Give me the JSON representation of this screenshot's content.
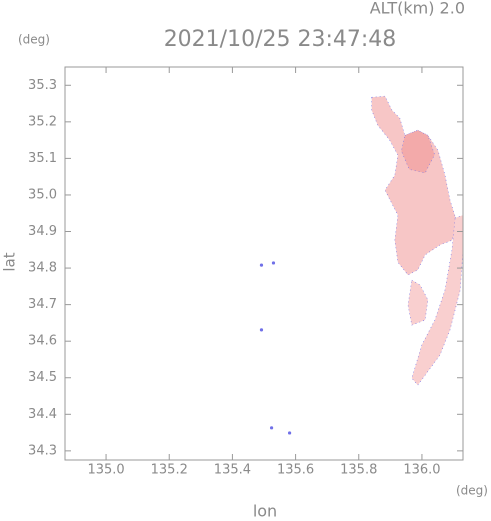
{
  "chart_data": {
    "type": "map",
    "altitude_label": "ALT(km) 2.0",
    "y_unit": "(deg)",
    "title": "2021/10/25 23:47:48",
    "ylabel": "lat",
    "xlabel": "lon",
    "x_unit": "(deg)",
    "xlim": [
      134.87,
      136.13
    ],
    "ylim": [
      34.275,
      35.35
    ],
    "xticks": [
      {
        "value": 135.0,
        "label": "135.0"
      },
      135.2,
      135.4,
      135.6,
      135.8,
      {
        "value": 136.0,
        "label": "136.0"
      }
    ],
    "yticks": [
      34.3,
      34.4,
      34.5,
      34.6,
      34.7,
      34.8,
      34.9,
      {
        "value": 35.0,
        "label": "35.0"
      },
      35.1,
      35.2,
      35.3
    ],
    "outline_color": "#7070e8",
    "echoes": [
      {
        "color": "#f7c6c6",
        "lon": [
          135.841,
          135.883,
          135.905,
          135.93,
          135.946,
          135.987,
          136.019,
          136.051,
          136.073,
          136.089,
          136.114,
          136.095,
          136.057,
          136.01,
          135.987,
          135.956,
          135.924,
          135.914,
          135.924,
          135.883,
          135.914,
          135.924,
          135.898,
          135.86,
          135.841
        ],
        "lat": [
          35.267,
          35.27,
          35.232,
          35.21,
          35.163,
          35.177,
          35.163,
          35.122,
          35.054,
          34.986,
          34.917,
          34.876,
          34.863,
          34.836,
          34.795,
          34.781,
          34.816,
          34.876,
          34.945,
          35.013,
          35.054,
          35.109,
          35.15,
          35.191,
          35.232
        ]
      },
      {
        "color": "#f9cfcf",
        "lon": [
          136.105,
          136.13,
          136.13,
          136.121,
          136.089,
          136.057,
          135.987,
          135.968,
          136.0,
          136.041,
          136.073,
          136.095
        ],
        "lat": [
          34.937,
          34.945,
          34.849,
          34.74,
          34.631,
          34.562,
          34.48,
          34.499,
          34.59,
          34.658,
          34.74,
          34.849
        ]
      },
      {
        "color": "#f9cfcf",
        "lon": [
          135.968,
          135.994,
          136.019,
          136.01,
          135.968,
          135.956
        ],
        "lat": [
          34.767,
          34.754,
          34.713,
          34.658,
          34.644,
          34.699
        ]
      },
      {
        "color": "#f3aaaa",
        "lon": [
          135.946,
          135.987,
          136.019,
          136.04,
          136.01,
          135.96,
          135.935
        ],
        "lat": [
          35.163,
          35.177,
          35.163,
          35.11,
          35.06,
          35.07,
          35.12
        ]
      }
    ],
    "points": {
      "color": "#7070e8",
      "lon": [
        135.492,
        135.53,
        135.492,
        135.524,
        135.581
      ],
      "lat": [
        34.808,
        34.814,
        34.631,
        34.363,
        34.349
      ]
    }
  }
}
